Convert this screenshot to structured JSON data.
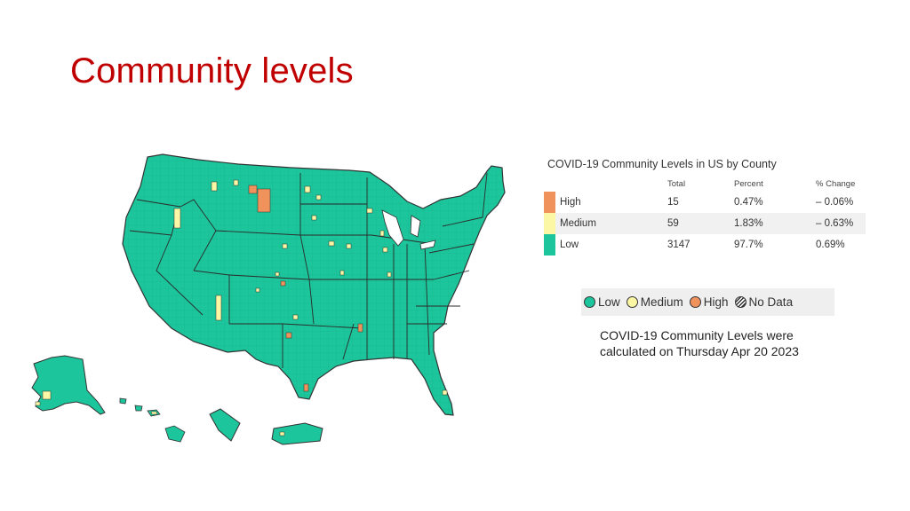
{
  "slide": {
    "title": "Community levels"
  },
  "stats": {
    "title": "COVID-19 Community Levels in US by County",
    "headers": {
      "total": "Total",
      "percent": "Percent",
      "change": "% Change"
    },
    "rows": [
      {
        "level": "High",
        "total": "15",
        "percent": "0.47%",
        "change": "– 0.06%",
        "color": "#f0925c"
      },
      {
        "level": "Medium",
        "total": "59",
        "percent": "1.83%",
        "change": "– 0.63%",
        "color": "#fbf7a4"
      },
      {
        "level": "Low",
        "total": "3147",
        "percent": "97.7%",
        "change": "0.69%",
        "color": "#1cc59b"
      }
    ]
  },
  "legend": {
    "items": [
      {
        "label": "Low",
        "color": "#1cc59b"
      },
      {
        "label": "Medium",
        "color": "#fbf7a4"
      },
      {
        "label": "High",
        "color": "#f0925c"
      },
      {
        "label": "No Data",
        "pattern": "hatched"
      }
    ]
  },
  "note": {
    "text": "COVID-19 Community Levels were calculated on Thursday Apr 20 2023"
  },
  "map": {
    "colors": {
      "low": "#1cc59b",
      "medium": "#fbf7a4",
      "high": "#f0925c",
      "border": "#333333"
    }
  }
}
